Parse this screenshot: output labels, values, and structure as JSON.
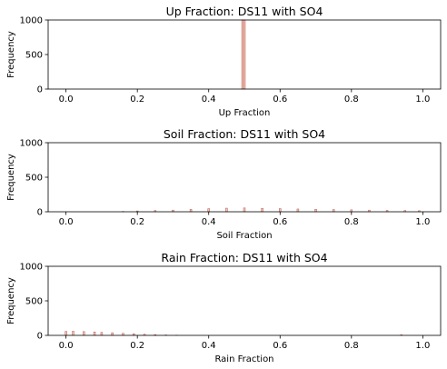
{
  "chart_data": [
    {
      "type": "bar",
      "title": "Up Fraction: DS11 with SO4",
      "xlabel": "Up Fraction",
      "ylabel": "Frequency",
      "xlim": [
        -0.05,
        1.05
      ],
      "ylim": [
        0,
        1000
      ],
      "xticks": [
        "0.0",
        "0.2",
        "0.4",
        "0.6",
        "0.8",
        "1.0"
      ],
      "yticks": [
        "0",
        "500",
        "1000"
      ],
      "bin_width": 0.005,
      "bins": [
        {
          "x": 0.495,
          "value": 1000
        },
        {
          "x": 0.5,
          "value": 1000
        }
      ],
      "colors": {
        "fill": "#f4c7bd",
        "edge": "#b3574a"
      }
    },
    {
      "type": "bar",
      "title": "Soil Fraction: DS11 with SO4",
      "xlabel": "Soil Fraction",
      "ylabel": "Frequency",
      "xlim": [
        -0.05,
        1.05
      ],
      "ylim": [
        0,
        1000
      ],
      "xticks": [
        "0.0",
        "0.2",
        "0.4",
        "0.6",
        "0.8",
        "1.0"
      ],
      "yticks": [
        "0",
        "500",
        "1000"
      ],
      "bin_width": 0.005,
      "bins": [
        {
          "x": 0.16,
          "value": 5
        },
        {
          "x": 0.2,
          "value": 12
        },
        {
          "x": 0.25,
          "value": 18
        },
        {
          "x": 0.3,
          "value": 24
        },
        {
          "x": 0.35,
          "value": 35
        },
        {
          "x": 0.4,
          "value": 45
        },
        {
          "x": 0.45,
          "value": 52
        },
        {
          "x": 0.5,
          "value": 55
        },
        {
          "x": 0.55,
          "value": 50
        },
        {
          "x": 0.6,
          "value": 46
        },
        {
          "x": 0.65,
          "value": 40
        },
        {
          "x": 0.7,
          "value": 36
        },
        {
          "x": 0.75,
          "value": 32
        },
        {
          "x": 0.8,
          "value": 28
        },
        {
          "x": 0.85,
          "value": 24
        },
        {
          "x": 0.9,
          "value": 20
        },
        {
          "x": 0.95,
          "value": 18
        },
        {
          "x": 0.99,
          "value": 15
        }
      ],
      "colors": {
        "fill": "#f4c7bd",
        "edge": "#b3574a"
      }
    },
    {
      "type": "bar",
      "title": "Rain Fraction: DS11 with SO4",
      "xlabel": "Rain Fraction",
      "ylabel": "Frequency",
      "xlim": [
        -0.05,
        1.05
      ],
      "ylim": [
        0,
        1000
      ],
      "xticks": [
        "0.0",
        "0.2",
        "0.4",
        "0.6",
        "0.8",
        "1.0"
      ],
      "yticks": [
        "0",
        "500",
        "1000"
      ],
      "bin_width": 0.005,
      "bins": [
        {
          "x": 0.0,
          "value": 58
        },
        {
          "x": 0.02,
          "value": 60
        },
        {
          "x": 0.05,
          "value": 55
        },
        {
          "x": 0.08,
          "value": 50
        },
        {
          "x": 0.1,
          "value": 44
        },
        {
          "x": 0.13,
          "value": 38
        },
        {
          "x": 0.16,
          "value": 30
        },
        {
          "x": 0.19,
          "value": 24
        },
        {
          "x": 0.22,
          "value": 16
        },
        {
          "x": 0.25,
          "value": 10
        },
        {
          "x": 0.28,
          "value": 6
        },
        {
          "x": 0.31,
          "value": 3
        },
        {
          "x": 0.94,
          "value": 8
        }
      ],
      "colors": {
        "fill": "#f4c7bd",
        "edge": "#b3574a"
      }
    }
  ]
}
